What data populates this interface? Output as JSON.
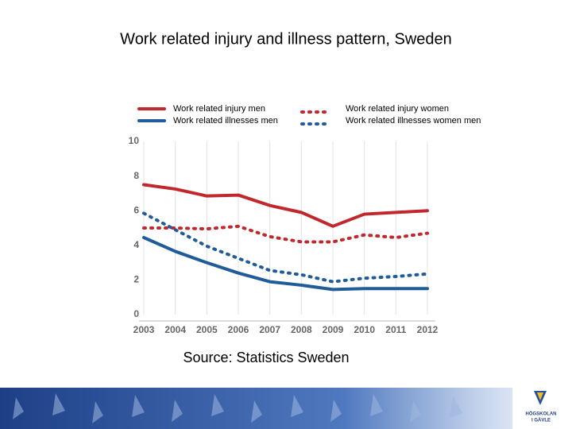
{
  "chart_data": {
    "type": "line",
    "title": "Work related injury and illness pattern, Sweden",
    "source": "Source: Statistics Sweden",
    "x": [
      2003,
      2004,
      2005,
      2006,
      2007,
      2008,
      2009,
      2010,
      2011,
      2012
    ],
    "xlim": [
      2003,
      2012
    ],
    "xticks": [
      2003,
      2004,
      2005,
      2006,
      2007,
      2008,
      2009,
      2010,
      2011,
      2012
    ],
    "ylim": [
      0,
      10
    ],
    "yticks": [
      0,
      2,
      4,
      6,
      8,
      10
    ],
    "grid": "x",
    "series": [
      {
        "name": "Work related injury men",
        "color": "#c0282d",
        "dashed": false,
        "values": [
          7.5,
          7.25,
          6.85,
          6.9,
          6.3,
          5.9,
          5.1,
          5.8,
          5.9,
          6.0
        ]
      },
      {
        "name": "Work related  illnesses  men",
        "color": "#1f5c99",
        "dashed": false,
        "values": [
          4.45,
          3.65,
          3.0,
          2.4,
          1.9,
          1.7,
          1.45,
          1.5,
          1.5,
          1.5
        ]
      },
      {
        "name": "Work related injury women",
        "color": "#c0282d",
        "dashed": true,
        "values": [
          5.0,
          5.0,
          4.95,
          5.1,
          4.5,
          4.2,
          4.2,
          4.6,
          4.45,
          4.7
        ]
      },
      {
        "name": "Work related  illnesses women men",
        "color": "#1f5c99",
        "dashed": true,
        "values": [
          5.85,
          4.9,
          3.95,
          3.25,
          2.55,
          2.3,
          1.9,
          2.1,
          2.2,
          2.35
        ]
      }
    ]
  },
  "footer": {
    "logo": [
      "HÖGSKOLAN",
      "I GÄVLE"
    ]
  }
}
